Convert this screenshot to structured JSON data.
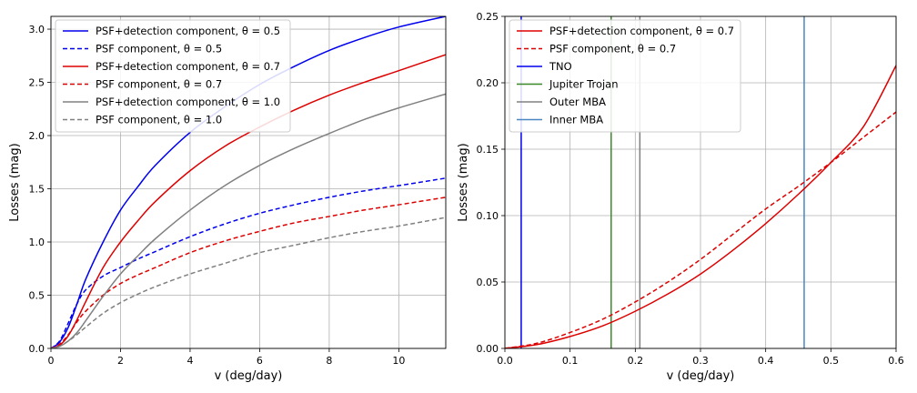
{
  "chart_data": [
    {
      "type": "line",
      "xlabel": "v (deg/day)",
      "ylabel": "Losses (mag)",
      "xlim": [
        0,
        11.35
      ],
      "ylim": [
        0,
        3.12
      ],
      "xticks": [
        "0",
        "2",
        "4",
        "6",
        "8",
        "10"
      ],
      "yticks": [
        "0.0",
        "0.5",
        "1.0",
        "1.5",
        "2.0",
        "2.5",
        "3.0"
      ],
      "grid": true,
      "legend_position": "top-left",
      "series": [
        {
          "name": "PSF+detection component, θ = 0.5",
          "color": "#0000ee",
          "style": "solid",
          "x": [
            0,
            0.25,
            0.5,
            0.75,
            1,
            1.5,
            2,
            2.5,
            3,
            4,
            5,
            6,
            7,
            8,
            9,
            10,
            11.35
          ],
          "y": [
            0,
            0.06,
            0.2,
            0.42,
            0.65,
            1.0,
            1.3,
            1.52,
            1.72,
            2.03,
            2.27,
            2.48,
            2.65,
            2.8,
            2.92,
            3.02,
            3.12
          ]
        },
        {
          "name": "PSF component, θ = 0.5",
          "color": "#0000ee",
          "style": "dashed",
          "x": [
            0,
            0.25,
            0.5,
            0.75,
            1,
            1.5,
            2,
            2.5,
            3,
            4,
            5,
            6,
            7,
            8,
            9,
            10,
            11.35
          ],
          "y": [
            0,
            0.07,
            0.24,
            0.42,
            0.55,
            0.68,
            0.76,
            0.84,
            0.91,
            1.05,
            1.17,
            1.27,
            1.35,
            1.42,
            1.48,
            1.53,
            1.6
          ]
        },
        {
          "name": "PSF+detection component, θ = 0.7",
          "color": "#dd0000",
          "style": "solid",
          "x": [
            0,
            0.25,
            0.5,
            0.75,
            1,
            1.5,
            2,
            2.5,
            3,
            4,
            5,
            6,
            7,
            8,
            9,
            10,
            11.35
          ],
          "y": [
            0,
            0.03,
            0.12,
            0.27,
            0.44,
            0.76,
            1.0,
            1.2,
            1.38,
            1.67,
            1.9,
            2.08,
            2.24,
            2.38,
            2.5,
            2.61,
            2.76
          ]
        },
        {
          "name": "PSF component, θ = 0.7",
          "color": "#dd0000",
          "style": "dashed",
          "x": [
            0,
            0.25,
            0.5,
            0.75,
            1,
            1.5,
            2,
            2.5,
            3,
            4,
            5,
            6,
            7,
            8,
            9,
            10,
            11.35
          ],
          "y": [
            0,
            0.04,
            0.13,
            0.25,
            0.35,
            0.5,
            0.61,
            0.69,
            0.76,
            0.9,
            1.01,
            1.1,
            1.18,
            1.24,
            1.3,
            1.35,
            1.42
          ]
        },
        {
          "name": "PSF+detection component, θ = 1.0",
          "color": "#808080",
          "style": "solid",
          "x": [
            0,
            0.25,
            0.5,
            0.75,
            1,
            1.5,
            2,
            2.5,
            3,
            4,
            5,
            6,
            7,
            8,
            9,
            10,
            11.35
          ],
          "y": [
            0,
            0.02,
            0.07,
            0.15,
            0.26,
            0.49,
            0.7,
            0.87,
            1.03,
            1.3,
            1.53,
            1.72,
            1.88,
            2.02,
            2.15,
            2.26,
            2.39
          ]
        },
        {
          "name": "PSF component, θ = 1.0",
          "color": "#808080",
          "style": "dashed",
          "x": [
            0,
            0.25,
            0.5,
            0.75,
            1,
            1.5,
            2,
            2.5,
            3,
            4,
            5,
            6,
            7,
            8,
            9,
            10,
            11.35
          ],
          "y": [
            0,
            0.02,
            0.07,
            0.13,
            0.2,
            0.33,
            0.43,
            0.51,
            0.58,
            0.7,
            0.8,
            0.9,
            0.97,
            1.04,
            1.1,
            1.15,
            1.23
          ]
        }
      ]
    },
    {
      "type": "line",
      "xlabel": "v (deg/day)",
      "ylabel": "Losses (mag)",
      "xlim": [
        0,
        0.6
      ],
      "ylim": [
        0,
        0.25
      ],
      "xticks": [
        "0.0",
        "0.1",
        "0.2",
        "0.3",
        "0.4",
        "0.5",
        "0.6"
      ],
      "yticks": [
        "0.00",
        "0.05",
        "0.10",
        "0.15",
        "0.20",
        "0.25"
      ],
      "grid": true,
      "legend_position": "top-left",
      "series": [
        {
          "name": "PSF+detection component, θ = 0.7",
          "color": "#dd0000",
          "style": "solid",
          "x": [
            0,
            0.05,
            0.1,
            0.15,
            0.2,
            0.25,
            0.3,
            0.35,
            0.4,
            0.45,
            0.5,
            0.55,
            0.6
          ],
          "y": [
            0,
            0.003,
            0.009,
            0.017,
            0.028,
            0.041,
            0.056,
            0.074,
            0.094,
            0.116,
            0.14,
            0.167,
            0.213
          ]
        },
        {
          "name": "PSF component, θ = 0.7",
          "color": "#dd0000",
          "style": "dashed",
          "x": [
            0,
            0.05,
            0.1,
            0.15,
            0.2,
            0.25,
            0.3,
            0.35,
            0.4,
            0.45,
            0.5,
            0.55,
            0.6
          ],
          "y": [
            0,
            0.004,
            0.012,
            0.022,
            0.035,
            0.05,
            0.067,
            0.086,
            0.105,
            0.122,
            0.14,
            0.159,
            0.178
          ]
        }
      ],
      "vlines": [
        {
          "name": "TNO",
          "x": 0.025,
          "color": "#0000ee"
        },
        {
          "name": "Jupiter Trojan",
          "x": 0.163,
          "color": "#3a8a2a"
        },
        {
          "name": "Outer MBA",
          "x": 0.207,
          "color": "#808080"
        },
        {
          "name": "Inner MBA",
          "x": 0.459,
          "color": "#4a86c0"
        }
      ]
    }
  ]
}
